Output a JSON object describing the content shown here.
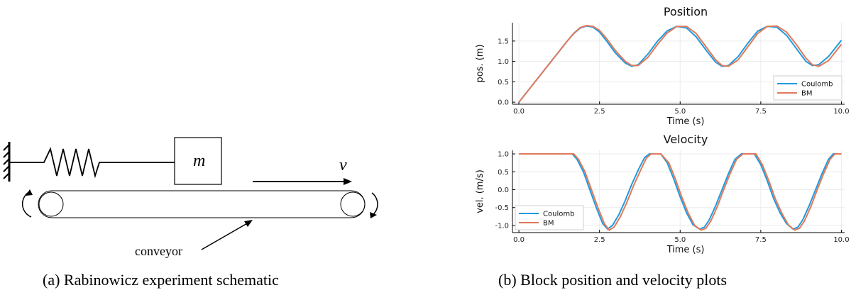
{
  "schematic": {
    "mass_label": "m",
    "velocity_label": "v",
    "conveyor_label": "conveyor"
  },
  "captions": {
    "a": "(a) Rabinowicz experiment schematic",
    "b": "(b) Block position and velocity plots"
  },
  "chart_data": [
    {
      "type": "line",
      "title": "Position",
      "xlabel": "Time (s)",
      "ylabel": "pos. (m)",
      "xlim": [
        -0.2,
        10.1
      ],
      "ylim": [
        -0.05,
        1.95
      ],
      "xticks": [
        "0.0",
        "2.5",
        "5.0",
        "7.5",
        "10.0"
      ],
      "xtick_values": [
        0,
        2.5,
        5,
        7.5,
        10
      ],
      "yticks": [
        "0.0",
        "0.5",
        "1.0",
        "1.5"
      ],
      "ytick_values": [
        0,
        0.5,
        1.0,
        1.5
      ],
      "grid": true,
      "legend_position": "bottom-right",
      "series": [
        {
          "name": "Coulomb",
          "color": "#1f9be0",
          "x": [
            0,
            0.5,
            1.0,
            1.5,
            1.7,
            1.9,
            2.1,
            2.3,
            2.5,
            2.7,
            3.0,
            3.3,
            3.5,
            3.7,
            4.0,
            4.3,
            4.6,
            4.9,
            5.2,
            5.5,
            5.8,
            6.1,
            6.3,
            6.5,
            6.8,
            7.1,
            7.4,
            7.7,
            8.0,
            8.3,
            8.6,
            8.9,
            9.1,
            9.3,
            9.6,
            10.0
          ],
          "y": [
            0,
            0.5,
            1.0,
            1.5,
            1.68,
            1.82,
            1.87,
            1.84,
            1.72,
            1.52,
            1.2,
            0.96,
            0.88,
            0.92,
            1.18,
            1.5,
            1.75,
            1.86,
            1.82,
            1.6,
            1.28,
            0.98,
            0.88,
            0.9,
            1.12,
            1.45,
            1.74,
            1.86,
            1.84,
            1.64,
            1.32,
            1.0,
            0.9,
            0.92,
            1.12,
            1.52
          ]
        },
        {
          "name": "BM",
          "color": "#e07a5a",
          "x": [
            0,
            0.5,
            1.0,
            1.5,
            1.7,
            1.9,
            2.1,
            2.3,
            2.5,
            2.7,
            3.0,
            3.3,
            3.5,
            3.7,
            4.0,
            4.3,
            4.6,
            4.9,
            5.2,
            5.5,
            5.8,
            6.1,
            6.3,
            6.5,
            6.8,
            7.1,
            7.4,
            7.7,
            8.0,
            8.3,
            8.6,
            8.9,
            9.1,
            9.3,
            9.6,
            10.0
          ],
          "y": [
            0,
            0.5,
            1.0,
            1.5,
            1.69,
            1.83,
            1.88,
            1.86,
            1.76,
            1.58,
            1.26,
            1.0,
            0.9,
            0.9,
            1.1,
            1.42,
            1.7,
            1.86,
            1.86,
            1.68,
            1.36,
            1.04,
            0.9,
            0.88,
            1.04,
            1.36,
            1.68,
            1.86,
            1.87,
            1.72,
            1.42,
            1.08,
            0.92,
            0.88,
            1.02,
            1.42
          ]
        }
      ]
    },
    {
      "type": "line",
      "title": "Velocity",
      "xlabel": "Time (s)",
      "ylabel": "vel. (m/s)",
      "xlim": [
        -0.2,
        10.1
      ],
      "ylim": [
        -1.2,
        1.1
      ],
      "xticks": [
        "0.0",
        "2.5",
        "5.0",
        "7.5",
        "10.0"
      ],
      "xtick_values": [
        0,
        2.5,
        5,
        7.5,
        10
      ],
      "yticks": [
        "1.0",
        "0.5",
        "0.0",
        "-0.5",
        "-1.0"
      ],
      "ytick_values": [
        1.0,
        0.5,
        0.0,
        -0.5,
        -1.0
      ],
      "grid": true,
      "legend_position": "bottom-left",
      "series": [
        {
          "name": "Coulomb",
          "color": "#1f9be0",
          "x": [
            0,
            1.65,
            1.8,
            2.0,
            2.2,
            2.4,
            2.6,
            2.75,
            2.9,
            3.1,
            3.3,
            3.5,
            3.7,
            3.9,
            4.05,
            4.4,
            4.6,
            4.8,
            5.0,
            5.2,
            5.4,
            5.6,
            5.75,
            5.9,
            6.1,
            6.3,
            6.5,
            6.7,
            6.9,
            7.0,
            7.3,
            7.5,
            7.7,
            7.9,
            8.1,
            8.3,
            8.5,
            8.65,
            8.8,
            9.0,
            9.2,
            9.4,
            9.6,
            9.75,
            10.0
          ],
          "y": [
            1.0,
            1.0,
            0.85,
            0.5,
            0.0,
            -0.5,
            -0.95,
            -1.1,
            -1.0,
            -0.7,
            -0.3,
            0.15,
            0.55,
            0.9,
            1.0,
            1.0,
            0.75,
            0.3,
            -0.2,
            -0.65,
            -0.98,
            -1.1,
            -1.05,
            -0.85,
            -0.45,
            0.0,
            0.45,
            0.85,
            1.0,
            1.0,
            1.0,
            0.7,
            0.25,
            -0.25,
            -0.65,
            -0.95,
            -1.1,
            -1.05,
            -0.85,
            -0.45,
            0.0,
            0.45,
            0.85,
            1.0,
            1.0
          ]
        },
        {
          "name": "BM",
          "color": "#e07a5a",
          "x": [
            0,
            1.7,
            1.85,
            2.05,
            2.25,
            2.45,
            2.65,
            2.8,
            2.95,
            3.15,
            3.35,
            3.55,
            3.75,
            3.95,
            4.1,
            4.4,
            4.65,
            4.85,
            5.05,
            5.25,
            5.45,
            5.65,
            5.8,
            5.95,
            6.15,
            6.35,
            6.55,
            6.75,
            6.95,
            7.05,
            7.35,
            7.55,
            7.75,
            7.95,
            8.15,
            8.35,
            8.55,
            8.7,
            8.85,
            9.05,
            9.25,
            9.45,
            9.65,
            9.8,
            10.0
          ],
          "y": [
            1.0,
            1.0,
            0.85,
            0.5,
            0.0,
            -0.5,
            -0.95,
            -1.13,
            -1.05,
            -0.75,
            -0.35,
            0.1,
            0.5,
            0.88,
            1.0,
            1.0,
            0.75,
            0.3,
            -0.2,
            -0.65,
            -1.0,
            -1.13,
            -1.08,
            -0.88,
            -0.48,
            0.0,
            0.45,
            0.85,
            1.0,
            1.0,
            1.0,
            0.7,
            0.25,
            -0.25,
            -0.65,
            -0.98,
            -1.13,
            -1.08,
            -0.88,
            -0.48,
            0.0,
            0.45,
            0.85,
            1.0,
            1.0
          ]
        }
      ]
    }
  ]
}
